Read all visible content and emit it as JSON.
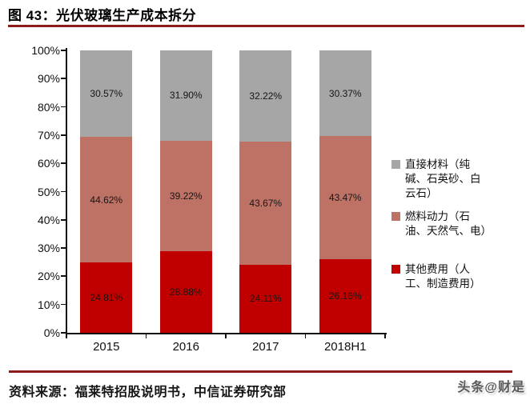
{
  "header": {
    "title": "图 43：光伏玻璃生产成本拆分"
  },
  "chart_data": {
    "type": "bar",
    "stacked": true,
    "title": "光伏玻璃生产成本拆分",
    "categories": [
      "2015",
      "2016",
      "2017",
      "2018H1"
    ],
    "series": [
      {
        "name": "其他费用（人工、制造费用）",
        "color": "#C00000",
        "values": [
          24.81,
          28.88,
          24.11,
          26.16
        ]
      },
      {
        "name": "燃料动力（石油、天然气、电）",
        "color": "#BE7265",
        "values": [
          44.62,
          39.22,
          43.67,
          43.47
        ]
      },
      {
        "name": "直接材料（纯碱、石英砂、白云石）",
        "color": "#A6A6A6",
        "values": [
          30.57,
          31.9,
          32.22,
          30.37
        ]
      }
    ],
    "value_suffix": "%",
    "ylim": [
      0,
      100
    ],
    "y_ticks": [
      "0%",
      "10%",
      "20%",
      "30%",
      "40%",
      "50%",
      "60%",
      "70%",
      "80%",
      "90%",
      "100%"
    ],
    "grid": false,
    "legend_position": "right",
    "data_labels": true
  },
  "legend": {
    "items": [
      {
        "color": "#A6A6A6",
        "lines": [
          "直接材料（纯",
          "碱、石英砂、白",
          "云石）"
        ]
      },
      {
        "color": "#BE7265",
        "lines": [
          "燃料动力（石",
          "油、天然气、电）"
        ]
      },
      {
        "color": "#C00000",
        "lines": [
          "其他费用（人",
          "工、制造费用）"
        ]
      }
    ]
  },
  "footer": {
    "source": "资料来源：福莱特招股说明书，中信证券研究部",
    "watermark": "头条@财是"
  },
  "colors": {
    "accent_line": "#8E1B1B",
    "axis": "#111111",
    "background": "#FFFFFF"
  }
}
